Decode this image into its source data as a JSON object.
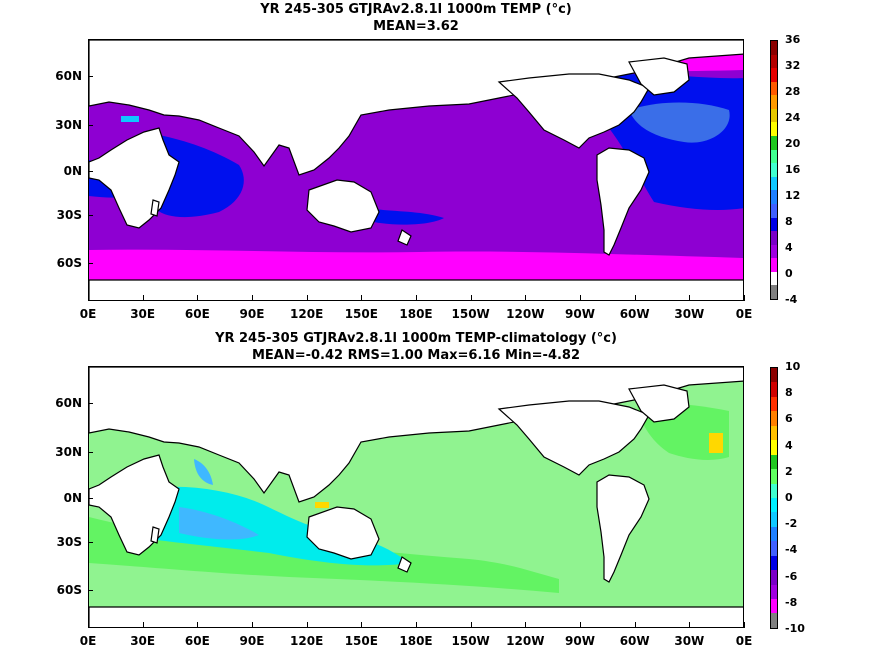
{
  "panels": [
    {
      "title": "YR 245-305 GTJRAv2.8.1l 1000m TEMP (°c)",
      "subtitle": "MEAN=3.62",
      "colorbar": {
        "labels": [
          "36",
          "32",
          "28",
          "24",
          "20",
          "16",
          "12",
          "8",
          "4",
          "0",
          "-4"
        ],
        "colors": [
          "#8b0000",
          "#b40000",
          "#e60000",
          "#ff5a00",
          "#ff9a00",
          "#e6c800",
          "#ffff00",
          "#20c820",
          "#40ff90",
          "#40ffd0",
          "#10c8ff",
          "#2080ff",
          "#4060ff",
          "#0000e6",
          "#7b00c8",
          "#a000e0",
          "#ff00ff",
          "#ffffff",
          "#808080"
        ]
      },
      "palette": {
        "a": "#ff00ff",
        "b": "#8e00d2",
        "c": "#0010ee",
        "d": "#3a6ee8",
        "e": "#10c8ff"
      }
    },
    {
      "title": "YR 245-305 GTJRAv2.8.1l 1000m TEMP-climatology (°c)",
      "subtitle": "MEAN=-0.42   RMS=1.00   Max=6.16   Min=-4.82",
      "colorbar": {
        "labels": [
          "10",
          "8",
          "6",
          "4",
          "2",
          "0",
          "-2",
          "-4",
          "-6",
          "-8",
          "-10"
        ],
        "colors": [
          "#8b0000",
          "#d00000",
          "#ff3000",
          "#ff8000",
          "#ffc000",
          "#ffff00",
          "#20c820",
          "#60ff60",
          "#40ffd0",
          "#00f0ff",
          "#10c8ff",
          "#2080ff",
          "#4060ff",
          "#0000e6",
          "#7b00c8",
          "#a000e0",
          "#ff00ff",
          "#808080"
        ]
      },
      "palette": {
        "a": "#90f390",
        "b": "#63f363",
        "c": "#00ecec",
        "d": "#3fb8ff",
        "e": "#ffd800"
      }
    }
  ],
  "axes": {
    "x_ticks": [
      "0E",
      "30E",
      "60E",
      "90E",
      "120E",
      "150E",
      "180E",
      "150W",
      "120W",
      "90W",
      "60W",
      "30W",
      "0E"
    ],
    "y_ticks": [
      "60N",
      "30N",
      "0N",
      "30S",
      "60S"
    ]
  }
}
